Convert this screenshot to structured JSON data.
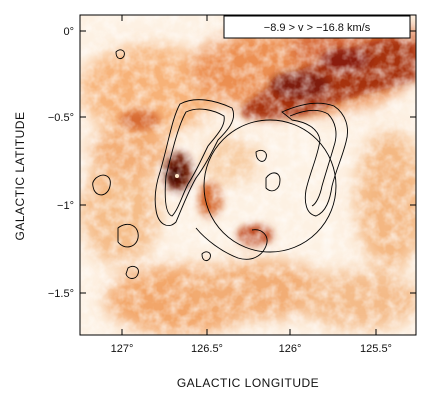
{
  "figure": {
    "velocity_label": "−8.9 > v > −16.8 km/s",
    "x_axis_title": "GALACTIC LONGITUDE",
    "y_axis_title": "GALACTIC LATITUDE",
    "x_ticks": [
      "127°",
      "126.5°",
      "126°",
      "125.5°"
    ],
    "y_ticks": [
      "0°",
      "−0.5°",
      "−1°",
      "−1.5°"
    ],
    "colors": {
      "map_light": "#fbe3c8",
      "map_mid": "#ef8a3c",
      "map_dark": "#6e1206",
      "contour": "#000000"
    }
  }
}
